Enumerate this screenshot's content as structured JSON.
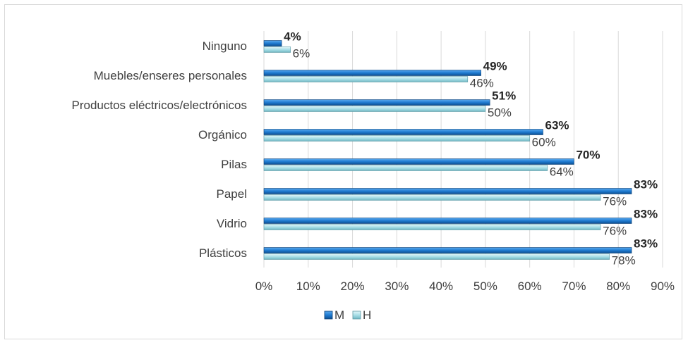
{
  "chart_data": {
    "type": "bar",
    "orientation": "horizontal",
    "categories": [
      "Ninguno",
      "Muebles/enseres personales",
      "Productos eléctricos/electrónicos",
      "Orgánico",
      "Pilas",
      "Papel",
      "Vidrio",
      "Plásticos"
    ],
    "series": [
      {
        "name": "M",
        "values": [
          4,
          49,
          51,
          63,
          70,
          83,
          83,
          83
        ],
        "labels": [
          "4%",
          "49%",
          "51%",
          "63%",
          "70%",
          "83%",
          "83%",
          "83%"
        ],
        "color": "#1f7bd1"
      },
      {
        "name": "H",
        "values": [
          6,
          46,
          50,
          60,
          64,
          76,
          76,
          78
        ],
        "labels": [
          "6%",
          "46%",
          "50%",
          "60%",
          "64%",
          "76%",
          "76%",
          "78%"
        ],
        "color": "#a9dfe7"
      }
    ],
    "xlim": [
      0,
      90
    ],
    "xticks": [
      "0%",
      "10%",
      "20%",
      "30%",
      "40%",
      "50%",
      "60%",
      "70%",
      "80%",
      "90%"
    ],
    "grid": true,
    "legend_position": "bottom",
    "title": "",
    "xlabel": "",
    "ylabel": ""
  }
}
